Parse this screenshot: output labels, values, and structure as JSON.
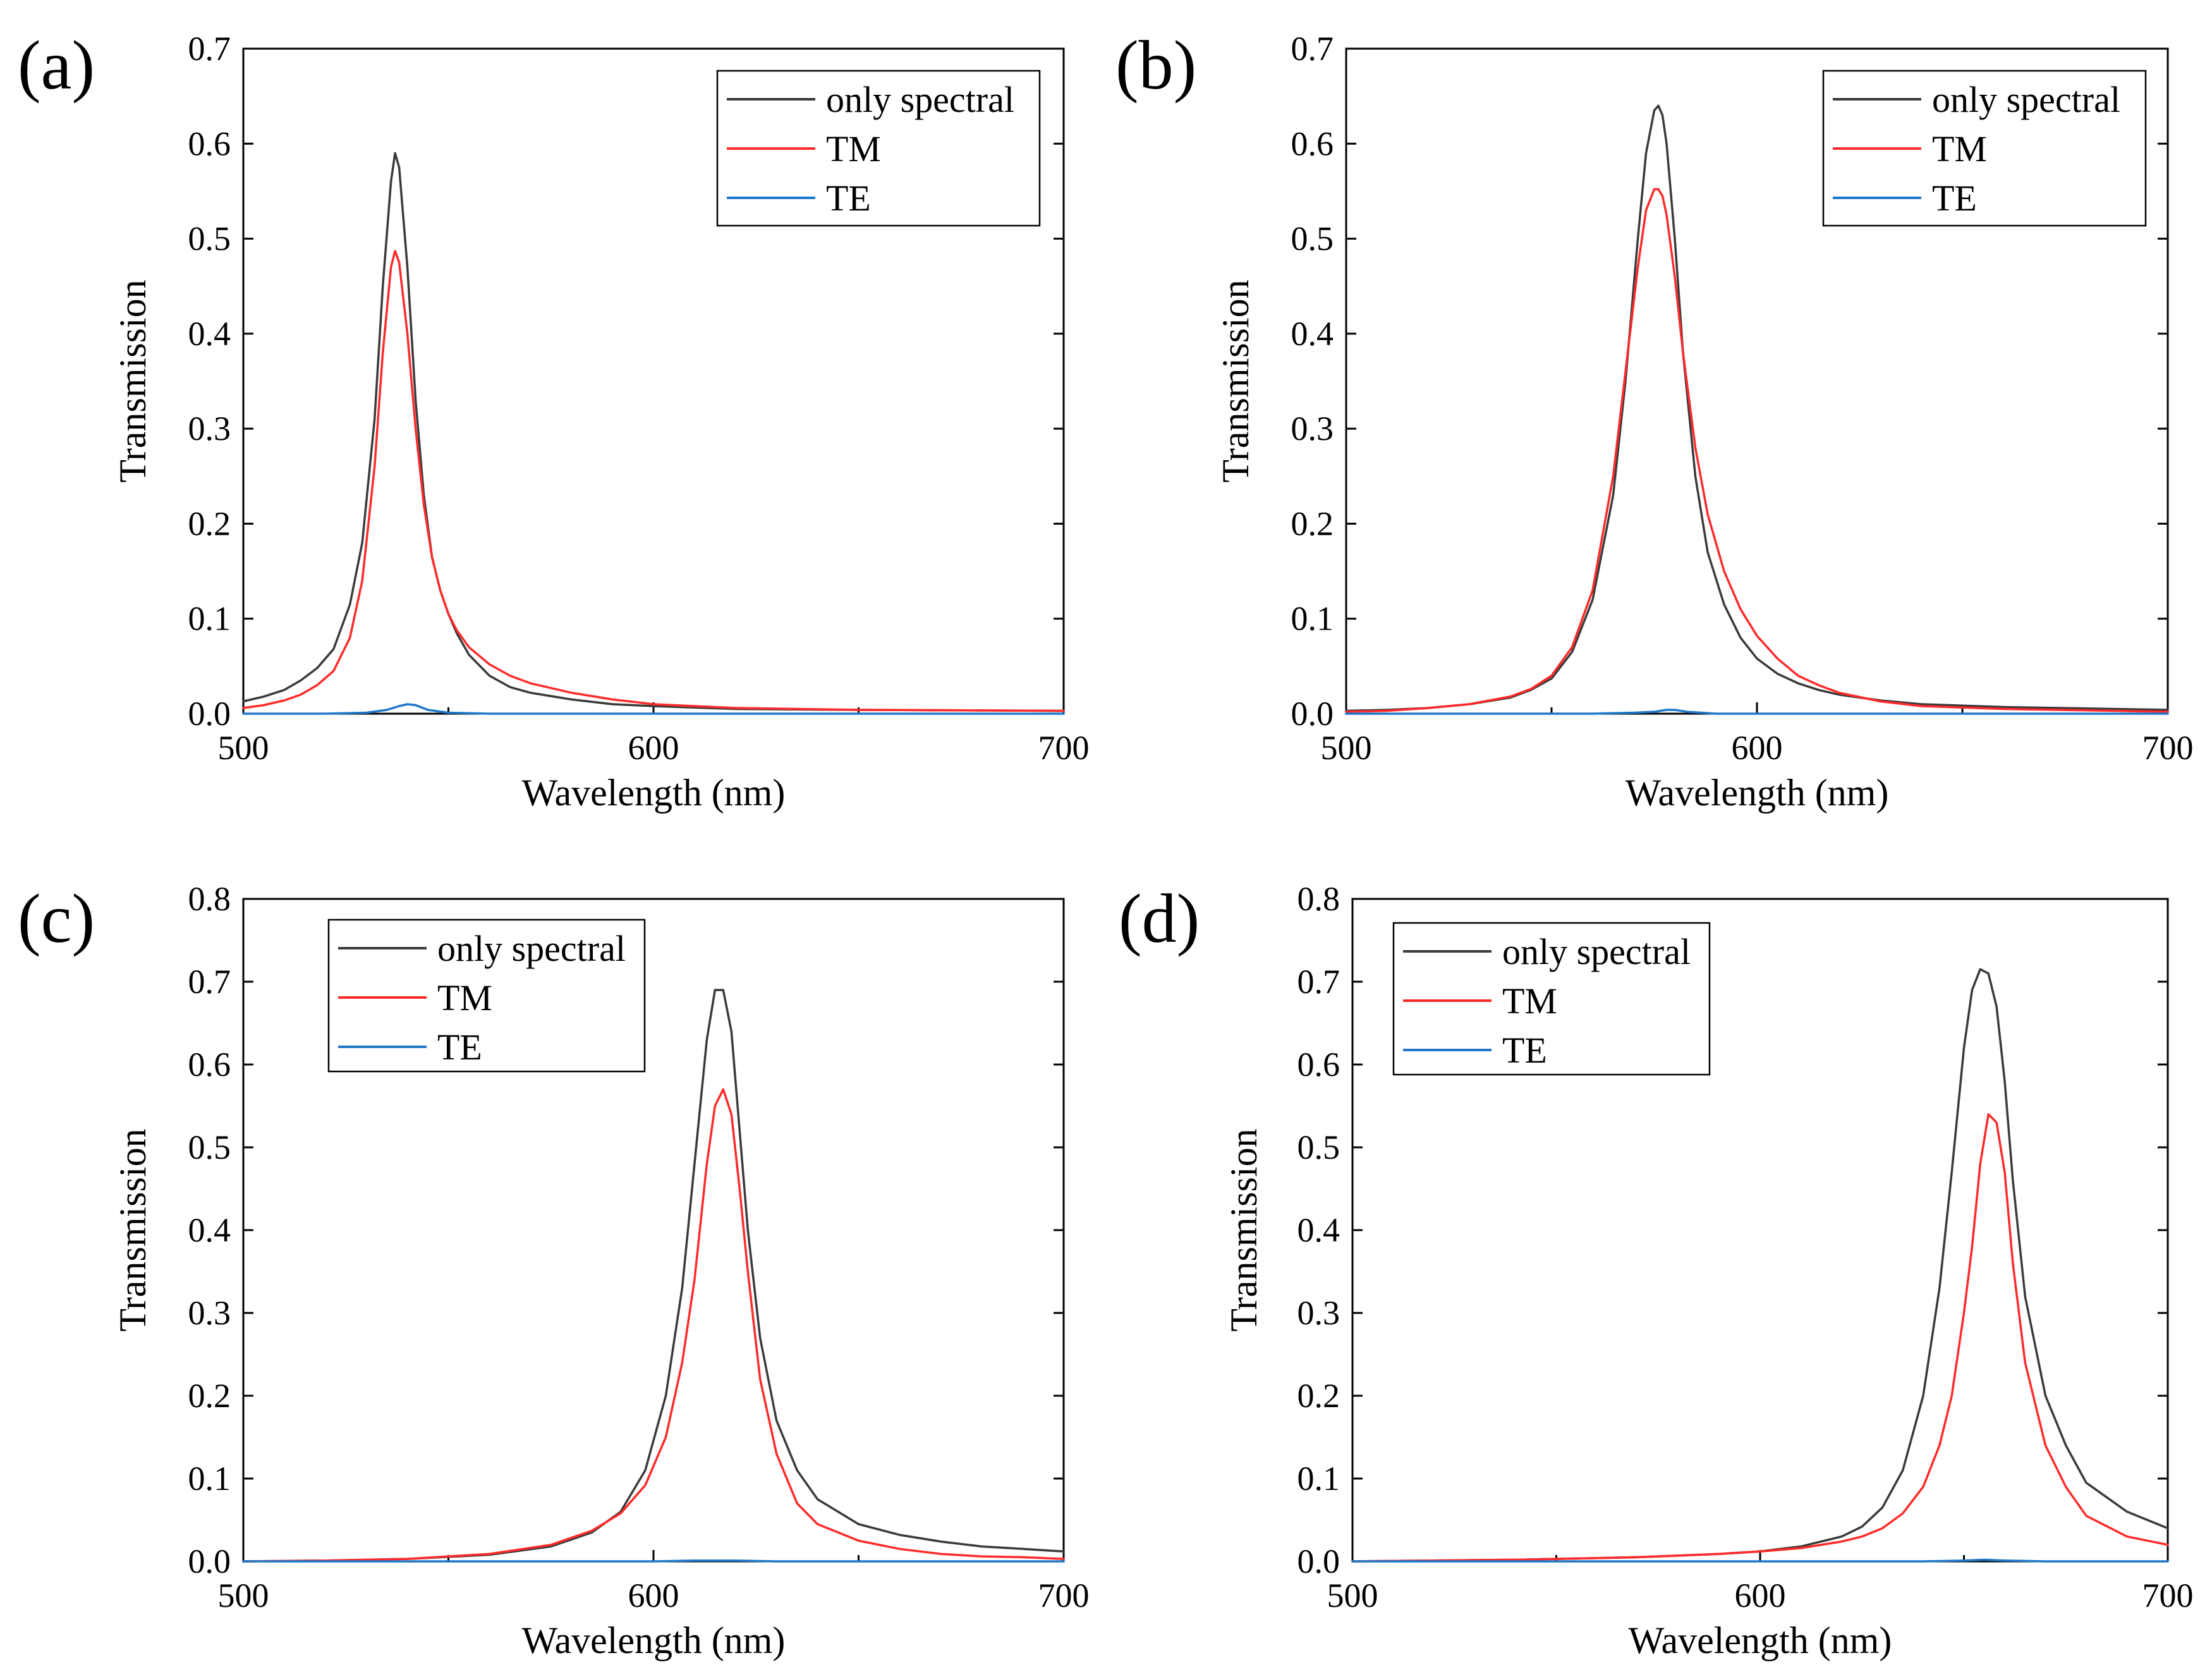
{
  "figure": {
    "colors": {
      "only_spectral": "#3a3a3a",
      "TM": "#ff2a2a",
      "TE": "#1f77c9"
    }
  },
  "chart_data": [
    {
      "panel": "(a)",
      "type": "line",
      "xlabel": "Wavelength (nm)",
      "ylabel": "Transmission",
      "xlim": [
        500,
        700
      ],
      "ylim": [
        0.0,
        0.7
      ],
      "xticks": [
        "500",
        "600",
        "700"
      ],
      "yticks": [
        "0.0",
        "0.1",
        "0.2",
        "0.3",
        "0.4",
        "0.5",
        "0.6",
        "0.7"
      ],
      "legend": {
        "position": "top-right",
        "entries": [
          "only spectral",
          "TM",
          "TE"
        ]
      },
      "series": [
        {
          "name": "only spectral",
          "color": "#3a3a3a",
          "x": [
            500,
            505,
            510,
            514,
            518,
            522,
            526,
            529,
            532,
            534,
            536,
            537,
            538,
            540,
            542,
            544,
            546,
            548,
            550,
            552,
            555,
            560,
            565,
            570,
            580,
            590,
            600,
            620,
            650,
            700
          ],
          "y": [
            0.013,
            0.018,
            0.025,
            0.035,
            0.048,
            0.068,
            0.115,
            0.18,
            0.31,
            0.45,
            0.56,
            0.59,
            0.575,
            0.47,
            0.33,
            0.23,
            0.165,
            0.13,
            0.105,
            0.085,
            0.062,
            0.04,
            0.028,
            0.022,
            0.015,
            0.01,
            0.008,
            0.005,
            0.004,
            0.003
          ]
        },
        {
          "name": "TM",
          "color": "#ff2a2a",
          "x": [
            500,
            505,
            510,
            514,
            518,
            522,
            526,
            529,
            532,
            534,
            536,
            537,
            538,
            540,
            542,
            544,
            546,
            548,
            550,
            552,
            555,
            560,
            565,
            570,
            580,
            590,
            600,
            620,
            650,
            700
          ],
          "y": [
            0.006,
            0.009,
            0.014,
            0.02,
            0.03,
            0.045,
            0.08,
            0.14,
            0.26,
            0.38,
            0.47,
            0.487,
            0.475,
            0.4,
            0.3,
            0.22,
            0.165,
            0.13,
            0.105,
            0.088,
            0.07,
            0.052,
            0.04,
            0.032,
            0.022,
            0.015,
            0.01,
            0.006,
            0.004,
            0.003
          ]
        },
        {
          "name": "TE",
          "color": "#1f77c9",
          "x": [
            500,
            520,
            530,
            535,
            538,
            540,
            542,
            545,
            550,
            560,
            600,
            650,
            700
          ],
          "y": [
            0.0,
            0.0,
            0.001,
            0.004,
            0.008,
            0.01,
            0.009,
            0.004,
            0.001,
            0.0,
            0.0,
            0.0,
            0.0
          ]
        }
      ]
    },
    {
      "panel": "(b)",
      "type": "line",
      "xlabel": "Wavelength (nm)",
      "ylabel": "Transmission",
      "xlim": [
        500,
        700
      ],
      "ylim": [
        0.0,
        0.7
      ],
      "xticks": [
        "500",
        "600",
        "700"
      ],
      "yticks": [
        "0.0",
        "0.1",
        "0.2",
        "0.3",
        "0.4",
        "0.5",
        "0.6",
        "0.7"
      ],
      "legend": {
        "position": "top-right",
        "entries": [
          "only spectral",
          "TM",
          "TE"
        ]
      },
      "series": [
        {
          "name": "only spectral",
          "color": "#3a3a3a",
          "x": [
            500,
            510,
            520,
            530,
            540,
            545,
            550,
            555,
            560,
            565,
            568,
            571,
            573,
            575,
            576,
            577,
            578,
            580,
            582,
            585,
            588,
            592,
            596,
            600,
            605,
            610,
            615,
            620,
            630,
            640,
            660,
            700
          ],
          "y": [
            0.003,
            0.004,
            0.006,
            0.01,
            0.017,
            0.025,
            0.037,
            0.065,
            0.12,
            0.23,
            0.35,
            0.5,
            0.59,
            0.635,
            0.64,
            0.63,
            0.6,
            0.5,
            0.38,
            0.25,
            0.17,
            0.115,
            0.08,
            0.058,
            0.042,
            0.032,
            0.025,
            0.02,
            0.014,
            0.01,
            0.007,
            0.004
          ]
        },
        {
          "name": "TM",
          "color": "#ff2a2a",
          "x": [
            500,
            510,
            520,
            530,
            540,
            545,
            550,
            555,
            560,
            565,
            568,
            571,
            573,
            575,
            576,
            577,
            578,
            580,
            582,
            585,
            588,
            592,
            596,
            600,
            605,
            610,
            615,
            620,
            630,
            640,
            660,
            700
          ],
          "y": [
            0.002,
            0.003,
            0.006,
            0.01,
            0.018,
            0.026,
            0.04,
            0.07,
            0.13,
            0.25,
            0.36,
            0.47,
            0.53,
            0.552,
            0.552,
            0.545,
            0.525,
            0.46,
            0.38,
            0.28,
            0.21,
            0.15,
            0.11,
            0.082,
            0.058,
            0.04,
            0.03,
            0.022,
            0.013,
            0.008,
            0.005,
            0.002
          ]
        },
        {
          "name": "TE",
          "color": "#1f77c9",
          "x": [
            500,
            560,
            570,
            575,
            578,
            580,
            583,
            590,
            600,
            700
          ],
          "y": [
            0.0,
            0.0,
            0.001,
            0.002,
            0.004,
            0.004,
            0.002,
            0.0,
            0.0,
            0.0
          ]
        }
      ]
    },
    {
      "panel": "(c)",
      "type": "line",
      "xlabel": "Wavelength (nm)",
      "ylabel": "Transmission",
      "xlim": [
        500,
        700
      ],
      "ylim": [
        0.0,
        0.8
      ],
      "xticks": [
        "500",
        "600",
        "700"
      ],
      "yticks": [
        "0.0",
        "0.1",
        "0.2",
        "0.3",
        "0.4",
        "0.5",
        "0.6",
        "0.7",
        "0.8"
      ],
      "legend": {
        "position": "top-left",
        "entries": [
          "only spectral",
          "TM",
          "TE"
        ]
      },
      "series": [
        {
          "name": "only spectral",
          "color": "#3a3a3a",
          "x": [
            500,
            520,
            540,
            560,
            575,
            585,
            592,
            598,
            603,
            607,
            610,
            613,
            615,
            617,
            619,
            621,
            623,
            626,
            630,
            635,
            640,
            650,
            660,
            670,
            680,
            690,
            700
          ],
          "y": [
            0.0,
            0.001,
            0.003,
            0.008,
            0.018,
            0.035,
            0.06,
            0.11,
            0.2,
            0.33,
            0.48,
            0.63,
            0.69,
            0.69,
            0.64,
            0.52,
            0.4,
            0.27,
            0.17,
            0.11,
            0.075,
            0.045,
            0.032,
            0.024,
            0.018,
            0.015,
            0.012
          ]
        },
        {
          "name": "TM",
          "color": "#ff2a2a",
          "x": [
            500,
            520,
            540,
            560,
            575,
            585,
            592,
            598,
            603,
            607,
            610,
            613,
            615,
            617,
            619,
            621,
            623,
            626,
            630,
            635,
            640,
            650,
            660,
            670,
            680,
            690,
            700
          ],
          "y": [
            0.0,
            0.001,
            0.003,
            0.009,
            0.02,
            0.037,
            0.058,
            0.092,
            0.15,
            0.24,
            0.34,
            0.48,
            0.55,
            0.57,
            0.54,
            0.45,
            0.35,
            0.22,
            0.13,
            0.07,
            0.045,
            0.025,
            0.015,
            0.009,
            0.006,
            0.005,
            0.003
          ]
        },
        {
          "name": "TE",
          "color": "#1f77c9",
          "x": [
            500,
            600,
            610,
            615,
            620,
            630,
            700
          ],
          "y": [
            0.0,
            0.0,
            0.001,
            0.001,
            0.001,
            0.0,
            0.0
          ]
        }
      ]
    },
    {
      "panel": "(d)",
      "type": "line",
      "xlabel": "Wavelength (nm)",
      "ylabel": "Transmission",
      "xlim": [
        500,
        700
      ],
      "ylim": [
        0.0,
        0.8
      ],
      "xticks": [
        "500",
        "600",
        "700"
      ],
      "yticks": [
        "0.0",
        "0.1",
        "0.2",
        "0.3",
        "0.4",
        "0.5",
        "0.6",
        "0.7",
        "0.8"
      ],
      "legend": {
        "position": "top-left",
        "entries": [
          "only spectral",
          "TM",
          "TE"
        ]
      },
      "series": [
        {
          "name": "only spectral",
          "color": "#3a3a3a",
          "x": [
            500,
            540,
            570,
            590,
            600,
            610,
            620,
            625,
            630,
            635,
            640,
            644,
            647,
            650,
            652,
            654,
            656,
            658,
            660,
            662,
            665,
            670,
            675,
            680,
            690,
            700
          ],
          "y": [
            0.0,
            0.002,
            0.005,
            0.009,
            0.012,
            0.018,
            0.03,
            0.042,
            0.065,
            0.11,
            0.2,
            0.33,
            0.47,
            0.62,
            0.69,
            0.715,
            0.71,
            0.67,
            0.58,
            0.46,
            0.32,
            0.2,
            0.14,
            0.095,
            0.06,
            0.04
          ]
        },
        {
          "name": "TM",
          "color": "#ff2a2a",
          "x": [
            500,
            540,
            570,
            590,
            600,
            610,
            620,
            625,
            630,
            635,
            640,
            644,
            647,
            650,
            652,
            654,
            656,
            658,
            660,
            662,
            665,
            670,
            675,
            680,
            690,
            700
          ],
          "y": [
            0.0,
            0.002,
            0.005,
            0.009,
            0.012,
            0.016,
            0.024,
            0.03,
            0.04,
            0.058,
            0.09,
            0.14,
            0.2,
            0.3,
            0.38,
            0.48,
            0.54,
            0.53,
            0.47,
            0.36,
            0.24,
            0.14,
            0.09,
            0.055,
            0.03,
            0.02
          ]
        },
        {
          "name": "TE",
          "color": "#1f77c9",
          "x": [
            500,
            640,
            650,
            655,
            660,
            670,
            700
          ],
          "y": [
            0.0,
            0.0,
            0.001,
            0.002,
            0.001,
            0.0,
            0.0
          ]
        }
      ]
    }
  ]
}
